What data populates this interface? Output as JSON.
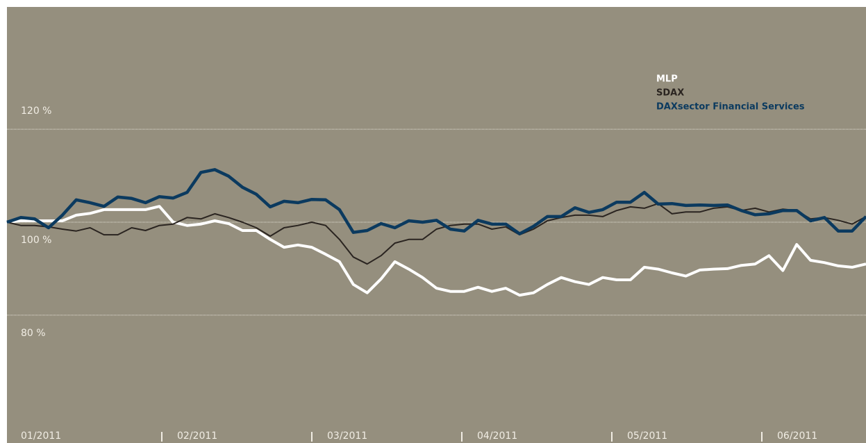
{
  "chart_data": {
    "type": "line",
    "x_labels": [
      "01/2011",
      "02/2011",
      "03/2011",
      "04/2011",
      "05/2011",
      "06/2011"
    ],
    "ylim": [
      52.5,
      146.3
    ],
    "yticks": [
      {
        "value": 80,
        "label": "80 %"
      },
      {
        "value": 100,
        "label": "100 %"
      },
      {
        "value": 120,
        "label": "120 %"
      }
    ],
    "grid": true,
    "legend": "top-right",
    "series": [
      {
        "name": "MLP",
        "color": "#ffffff",
        "values": [
          100,
          100.3,
          100.3,
          100.3,
          100.3,
          101.5,
          101.9,
          102.7,
          102.7,
          102.7,
          102.7,
          103.4,
          100,
          99.3,
          99.6,
          100.3,
          99.7,
          98.2,
          98.2,
          96.3,
          94.6,
          95.1,
          94.6,
          93.1,
          91.5,
          86.6,
          84.8,
          87.8,
          91.5,
          89.9,
          88.1,
          85.8,
          85.1,
          85.1,
          86.0,
          85.1,
          85.8,
          84.3,
          84.8,
          86.6,
          88.1,
          87.2,
          86.6,
          88.1,
          87.6,
          87.6,
          90.3,
          89.9,
          89.1,
          88.4,
          89.7,
          89.9,
          90.0,
          90.7,
          91.0,
          92.8,
          89.6,
          95.2,
          91.8,
          91.3,
          90.6,
          90.3,
          91.0
        ]
      },
      {
        "name": "SDAX",
        "color": "#2a2420",
        "values": [
          100,
          99.3,
          99.3,
          99.0,
          98.5,
          98.1,
          98.8,
          97.3,
          97.3,
          98.8,
          98.2,
          99.3,
          99.6,
          101.0,
          100.7,
          101.8,
          101.0,
          100,
          98.8,
          97.0,
          98.8,
          99.3,
          100,
          99.3,
          96.3,
          92.5,
          91.0,
          92.8,
          95.5,
          96.3,
          96.3,
          98.5,
          99.3,
          99.6,
          99.6,
          98.5,
          99.0,
          97.3,
          98.5,
          100.3,
          101.0,
          101.5,
          101.5,
          101.2,
          102.5,
          103.3,
          103.0,
          104.0,
          101.8,
          102.2,
          102.2,
          103.0,
          103.3,
          102.5,
          103.0,
          102.2,
          102.8,
          102.5,
          100.7,
          101.0,
          100.4,
          99.6,
          101.2
        ]
      },
      {
        "name": "DAXsector Financial Services",
        "color": "#0b3a5f",
        "values": [
          100,
          101.0,
          100.7,
          98.8,
          101.5,
          104.8,
          104.2,
          103.4,
          105.4,
          105.1,
          104.2,
          105.5,
          105.2,
          106.4,
          110.7,
          111.3,
          109.9,
          107.5,
          106.0,
          103.3,
          104.5,
          104.2,
          104.9,
          104.8,
          102.7,
          97.8,
          98.2,
          99.7,
          98.8,
          100.3,
          100,
          100.4,
          98.5,
          98.1,
          100.4,
          99.6,
          99.6,
          97.5,
          99.1,
          101.2,
          101.2,
          103.1,
          102.1,
          102.7,
          104.3,
          104.3,
          106.4,
          103.9,
          104.0,
          103.6,
          103.7,
          103.6,
          103.7,
          102.5,
          101.6,
          101.8,
          102.5,
          102.5,
          100.3,
          101.0,
          98.1,
          98.1,
          101.2
        ]
      }
    ]
  }
}
